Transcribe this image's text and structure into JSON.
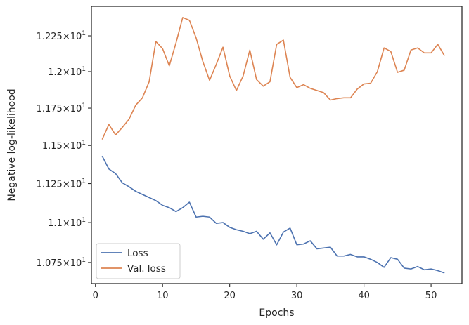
{
  "chart_data": {
    "type": "line",
    "title": "",
    "xlabel": "Epochs",
    "ylabel": "Negative log-likelihood",
    "y_scale": "log",
    "xlim": [
      -0.6,
      54.6
    ],
    "ylim": [
      10.62,
      12.46
    ],
    "grid": false,
    "legend_position": "lower-left",
    "x_ticks": [
      0,
      10,
      20,
      30,
      40,
      50
    ],
    "y_ticks": [
      {
        "value": 10.75,
        "mantissa": "1.075",
        "base": "10",
        "exp": "1"
      },
      {
        "value": 11.0,
        "mantissa": "1.1",
        "base": "10",
        "exp": "1"
      },
      {
        "value": 11.25,
        "mantissa": "1.125",
        "base": "10",
        "exp": "1"
      },
      {
        "value": 11.5,
        "mantissa": "1.15",
        "base": "10",
        "exp": "1"
      },
      {
        "value": 11.75,
        "mantissa": "1.175",
        "base": "10",
        "exp": "1"
      },
      {
        "value": 12.0,
        "mantissa": "1.2",
        "base": "10",
        "exp": "1"
      },
      {
        "value": 12.25,
        "mantissa": "1.225",
        "base": "10",
        "exp": "1"
      }
    ],
    "x": [
      1,
      2,
      3,
      4,
      5,
      6,
      7,
      8,
      9,
      10,
      11,
      12,
      13,
      14,
      15,
      16,
      17,
      18,
      19,
      20,
      21,
      22,
      23,
      24,
      25,
      26,
      27,
      28,
      29,
      30,
      31,
      32,
      33,
      34,
      35,
      36,
      37,
      38,
      39,
      40,
      41,
      42,
      43,
      44,
      45,
      46,
      47,
      48,
      49,
      50,
      51,
      52
    ],
    "series": [
      {
        "name": "Loss",
        "color": "#4c72b0",
        "values": [
          11.43,
          11.345,
          11.315,
          11.255,
          11.23,
          11.2,
          11.18,
          11.16,
          11.14,
          11.11,
          11.095,
          11.07,
          11.095,
          11.13,
          11.035,
          11.04,
          11.035,
          10.995,
          11.0,
          10.97,
          10.955,
          10.945,
          10.93,
          10.945,
          10.895,
          10.935,
          10.86,
          10.94,
          10.965,
          10.86,
          10.865,
          10.885,
          10.835,
          10.84,
          10.845,
          10.79,
          10.79,
          10.8,
          10.785,
          10.785,
          10.77,
          10.75,
          10.72,
          10.78,
          10.77,
          10.715,
          10.71,
          10.725,
          10.705,
          10.71,
          10.7,
          10.685
        ]
      },
      {
        "name": "Val. loss",
        "color": "#dd8452",
        "values": [
          11.54,
          11.64,
          11.57,
          11.62,
          11.675,
          11.77,
          11.82,
          11.93,
          12.21,
          12.16,
          12.04,
          12.2,
          12.38,
          12.36,
          12.235,
          12.07,
          11.94,
          12.05,
          12.17,
          11.97,
          11.87,
          11.97,
          12.15,
          11.945,
          11.9,
          11.93,
          12.19,
          12.22,
          11.96,
          11.89,
          11.91,
          11.885,
          11.87,
          11.855,
          11.805,
          11.815,
          11.82,
          11.82,
          11.88,
          11.915,
          11.92,
          12.0,
          12.165,
          12.14,
          11.995,
          12.01,
          12.15,
          12.165,
          12.13,
          12.13,
          12.19,
          12.11
        ]
      }
    ]
  }
}
